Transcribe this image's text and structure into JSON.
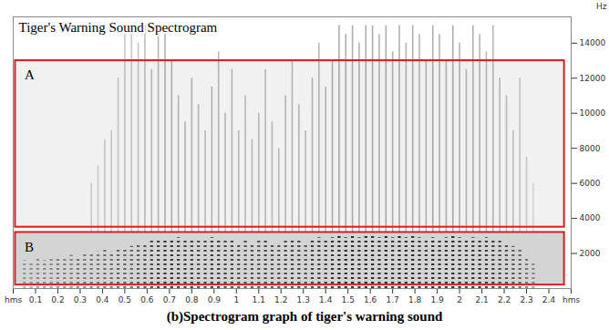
{
  "chart_data": {
    "type": "spectrogram",
    "title": "Tiger's Warning Sound Spectrogram",
    "caption": "(b)Spectrogram graph of tiger's warning sound",
    "y_label": "Hz",
    "xlim": [
      0,
      2.5
    ],
    "xticks": [
      {
        "value": 0,
        "label": "hms"
      },
      0.1,
      0.2,
      0.3,
      0.4,
      0.5,
      0.6,
      0.7,
      0.8,
      0.9,
      1,
      1.1,
      1.2,
      1.3,
      1.4,
      1.5,
      1.6,
      1.7,
      1.8,
      1.9,
      2,
      2.1,
      2.2,
      2.3,
      2.4,
      {
        "value": 2.5,
        "label": "hms"
      }
    ],
    "ylim": [
      0,
      15500
    ],
    "yticks": [
      2000,
      4000,
      6000,
      8000,
      10000,
      12000,
      14000
    ],
    "color": "#d42020",
    "regions": [
      {
        "label": "A",
        "t": [
          0.01,
          2.47
        ],
        "f": [
          3500,
          13000
        ]
      },
      {
        "label": "B",
        "t": [
          0.01,
          2.47
        ],
        "f": [
          200,
          3200
        ]
      }
    ],
    "pulses": {
      "time": [
        0.05,
        0.08,
        0.11,
        0.14,
        0.17,
        0.2,
        0.23,
        0.26,
        0.29,
        0.32,
        0.35,
        0.38,
        0.41,
        0.44,
        0.47,
        0.5,
        0.53,
        0.56,
        0.59,
        0.62,
        0.65,
        0.68,
        0.71,
        0.74,
        0.77,
        0.8,
        0.83,
        0.86,
        0.89,
        0.92,
        0.95,
        0.98,
        1.01,
        1.04,
        1.07,
        1.1,
        1.13,
        1.16,
        1.19,
        1.22,
        1.25,
        1.28,
        1.31,
        1.34,
        1.37,
        1.4,
        1.43,
        1.46,
        1.49,
        1.52,
        1.55,
        1.58,
        1.61,
        1.64,
        1.67,
        1.7,
        1.73,
        1.76,
        1.79,
        1.82,
        1.85,
        1.88,
        1.91,
        1.94,
        1.97,
        2.0,
        2.03,
        2.06,
        2.09,
        2.12,
        2.15,
        2.18,
        2.21,
        2.24,
        2.27,
        2.3,
        2.33
      ],
      "low_band_top": [
        1600,
        1500,
        1700,
        1600,
        1800,
        1700,
        1800,
        1900,
        1800,
        2000,
        2000,
        2100,
        2200,
        2100,
        2300,
        2300,
        2400,
        2500,
        2600,
        2700,
        2800,
        2800,
        2700,
        2900,
        2800,
        2800,
        2700,
        2800,
        2900,
        2800,
        2700,
        2800,
        2600,
        2700,
        2600,
        2700,
        2800,
        2600,
        2500,
        2700,
        2800,
        2700,
        2600,
        2800,
        2900,
        2800,
        2900,
        3000,
        2900,
        3000,
        2900,
        3000,
        3000,
        2900,
        3000,
        2900,
        3000,
        2900,
        3000,
        2900,
        2800,
        2900,
        2800,
        2900,
        3000,
        2900,
        2800,
        2900,
        2800,
        2900,
        2800,
        2700,
        2600,
        2400,
        2200,
        1800,
        1500
      ],
      "high_band_top": [
        null,
        null,
        null,
        null,
        null,
        null,
        null,
        null,
        null,
        null,
        6000,
        7000,
        8500,
        9000,
        12000,
        14500,
        15000,
        14000,
        15000,
        12500,
        14500,
        15000,
        13000,
        11000,
        9500,
        12000,
        10500,
        9000,
        11500,
        13500,
        10000,
        12500,
        9000,
        11000,
        8500,
        10000,
        12500,
        9500,
        8000,
        11000,
        13000,
        10500,
        9000,
        12000,
        14000,
        11500,
        13000,
        15000,
        14500,
        15000,
        14000,
        15000,
        15000,
        14500,
        15000,
        13500,
        15000,
        14000,
        15000,
        14500,
        13000,
        15000,
        14500,
        13000,
        15000,
        14000,
        12500,
        15000,
        14500,
        13500,
        15000,
        12000,
        11000,
        9000,
        12000,
        7500,
        6000
      ],
      "intensity": [
        0.35,
        0.35,
        0.4,
        0.4,
        0.4,
        0.45,
        0.45,
        0.45,
        0.5,
        0.5,
        0.5,
        0.5,
        0.55,
        0.55,
        0.6,
        0.6,
        0.6,
        0.65,
        0.7,
        0.75,
        0.8,
        0.85,
        0.85,
        0.8,
        0.8,
        0.8,
        0.75,
        0.75,
        0.8,
        0.8,
        0.75,
        0.75,
        0.7,
        0.7,
        0.7,
        0.7,
        0.75,
        0.7,
        0.7,
        0.75,
        0.75,
        0.75,
        0.7,
        0.8,
        0.8,
        0.8,
        0.85,
        0.9,
        0.9,
        0.9,
        0.85,
        0.9,
        0.9,
        0.85,
        0.9,
        0.85,
        0.9,
        0.85,
        0.9,
        0.85,
        0.8,
        0.9,
        0.85,
        0.85,
        0.9,
        0.85,
        0.8,
        0.85,
        0.85,
        0.8,
        0.8,
        0.75,
        0.7,
        0.65,
        0.6,
        0.5,
        0.4
      ]
    }
  }
}
